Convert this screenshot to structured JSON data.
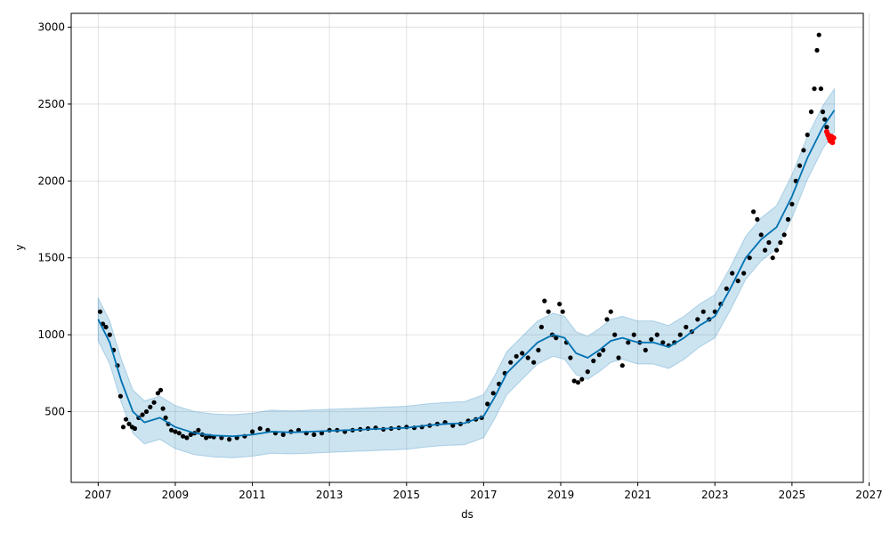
{
  "chart_data": {
    "type": "scatter",
    "title": "",
    "xlabel": "ds",
    "ylabel": "y",
    "xlim": [
      2006.3,
      2026.85
    ],
    "ylim": [
      40,
      3090
    ],
    "grid": true,
    "x_ticks": [
      2007,
      2009,
      2011,
      2013,
      2015,
      2017,
      2019,
      2021,
      2023,
      2025,
      2027
    ],
    "x_tick_labels": [
      "2007",
      "2009",
      "2011",
      "2013",
      "2015",
      "2017",
      "2019",
      "2021",
      "2023",
      "2025",
      "2027"
    ],
    "y_ticks": [
      500,
      1000,
      1500,
      2000,
      2500,
      3000
    ],
    "y_tick_labels": [
      "500",
      "1000",
      "1500",
      "2000",
      "2500",
      "3000"
    ],
    "colors": {
      "observed": "#000000",
      "forecast_line": "#0072b2",
      "uncertainty_band": "#0072b2",
      "highlighted_points": "#ff0000"
    },
    "series": [
      {
        "kind": "points",
        "color": "#000000",
        "x": [
          2007.05,
          2007.12,
          2007.2,
          2007.3,
          2007.4,
          2007.5,
          2007.58,
          2007.65,
          2007.72,
          2007.8,
          2007.88,
          2007.95,
          2008.05,
          2008.15,
          2008.25,
          2008.35,
          2008.45,
          2008.55,
          2008.62,
          2008.68,
          2008.75,
          2008.82,
          2008.9,
          2009.0,
          2009.1,
          2009.2,
          2009.3,
          2009.4,
          2009.5,
          2009.6,
          2009.7,
          2009.8,
          2009.9,
          2010.0,
          2010.2,
          2010.4,
          2010.6,
          2010.8,
          2011.0,
          2011.2,
          2011.4,
          2011.6,
          2011.8,
          2012.0,
          2012.2,
          2012.4,
          2012.6,
          2012.8,
          2013.0,
          2013.2,
          2013.4,
          2013.6,
          2013.8,
          2014.0,
          2014.2,
          2014.4,
          2014.6,
          2014.8,
          2015.0,
          2015.2,
          2015.4,
          2015.6,
          2015.8,
          2016.0,
          2016.2,
          2016.4,
          2016.6,
          2016.8,
          2016.95,
          2017.1,
          2017.25,
          2017.4,
          2017.55,
          2017.7,
          2017.85,
          2018.0,
          2018.15,
          2018.3,
          2018.42,
          2018.5,
          2018.58,
          2018.68,
          2018.78,
          2018.88,
          2018.97,
          2019.05,
          2019.15,
          2019.25,
          2019.35,
          2019.45,
          2019.55,
          2019.7,
          2019.85,
          2020.0,
          2020.1,
          2020.2,
          2020.3,
          2020.4,
          2020.5,
          2020.6,
          2020.75,
          2020.9,
          2021.05,
          2021.2,
          2021.35,
          2021.5,
          2021.65,
          2021.8,
          2021.95,
          2022.1,
          2022.25,
          2022.4,
          2022.55,
          2022.7,
          2022.85,
          2023.0,
          2023.15,
          2023.3,
          2023.45,
          2023.6,
          2023.75,
          2023.9,
          2024.0,
          2024.1,
          2024.2,
          2024.3,
          2024.4,
          2024.5,
          2024.6,
          2024.7,
          2024.8,
          2024.9,
          2025.0,
          2025.1,
          2025.2,
          2025.3,
          2025.4,
          2025.5,
          2025.58,
          2025.65,
          2025.7,
          2025.75,
          2025.8,
          2025.85,
          2025.9,
          2025.95
        ],
        "y": [
          1150,
          1070,
          1050,
          1000,
          900,
          800,
          600,
          400,
          450,
          420,
          400,
          390,
          460,
          480,
          500,
          530,
          560,
          620,
          640,
          520,
          460,
          420,
          380,
          370,
          360,
          340,
          330,
          350,
          360,
          380,
          350,
          330,
          340,
          335,
          330,
          320,
          330,
          340,
          370,
          390,
          380,
          360,
          350,
          370,
          380,
          360,
          350,
          360,
          380,
          380,
          370,
          380,
          385,
          390,
          395,
          385,
          390,
          395,
          400,
          395,
          400,
          410,
          420,
          430,
          410,
          420,
          440,
          450,
          460,
          550,
          620,
          680,
          750,
          820,
          860,
          880,
          850,
          820,
          900,
          1050,
          1220,
          1150,
          1000,
          980,
          1200,
          1150,
          950,
          850,
          700,
          690,
          710,
          760,
          830,
          870,
          900,
          1100,
          1150,
          1000,
          850,
          800,
          950,
          1000,
          950,
          900,
          970,
          1000,
          950,
          930,
          950,
          1000,
          1050,
          1020,
          1100,
          1150,
          1100,
          1150,
          1200,
          1300,
          1400,
          1350,
          1400,
          1500,
          1800,
          1750,
          1650,
          1550,
          1600,
          1500,
          1550,
          1600,
          1650,
          1750,
          1850,
          2000,
          2100,
          2200,
          2300,
          2450,
          2600,
          2850,
          2950,
          2600,
          2450,
          2400,
          2350,
          2300
        ]
      },
      {
        "kind": "forecast_line",
        "color": "#0072b2",
        "x": [
          2007.0,
          2007.3,
          2007.6,
          2007.9,
          2008.2,
          2008.6,
          2009.0,
          2009.5,
          2010.0,
          2010.5,
          2011.0,
          2011.5,
          2012.0,
          2012.5,
          2013.0,
          2013.5,
          2014.0,
          2014.5,
          2015.0,
          2015.5,
          2016.0,
          2016.5,
          2017.0,
          2017.3,
          2017.6,
          2018.0,
          2018.4,
          2018.8,
          2019.1,
          2019.4,
          2019.7,
          2020.0,
          2020.3,
          2020.6,
          2021.0,
          2021.4,
          2021.8,
          2022.2,
          2022.6,
          2023.0,
          2023.4,
          2023.8,
          2024.2,
          2024.6,
          2025.0,
          2025.4,
          2025.8,
          2026.1
        ],
        "y": [
          1100,
          950,
          700,
          500,
          430,
          460,
          400,
          360,
          345,
          340,
          350,
          370,
          365,
          370,
          375,
          380,
          385,
          390,
          395,
          410,
          420,
          425,
          470,
          600,
          750,
          850,
          950,
          1000,
          980,
          880,
          850,
          900,
          960,
          980,
          950,
          950,
          920,
          980,
          1060,
          1120,
          1300,
          1500,
          1620,
          1700,
          1900,
          2150,
          2350,
          2460
        ]
      },
      {
        "kind": "uncertainty_upper",
        "color": "#0072b2",
        "x": [
          2007.0,
          2007.3,
          2007.6,
          2007.9,
          2008.2,
          2008.6,
          2009.0,
          2009.5,
          2010.0,
          2010.5,
          2011.0,
          2011.5,
          2012.0,
          2012.5,
          2013.0,
          2013.5,
          2014.0,
          2014.5,
          2015.0,
          2015.5,
          2016.0,
          2016.5,
          2017.0,
          2017.3,
          2017.6,
          2018.0,
          2018.4,
          2018.8,
          2019.1,
          2019.4,
          2019.7,
          2020.0,
          2020.3,
          2020.6,
          2021.0,
          2021.4,
          2021.8,
          2022.2,
          2022.6,
          2023.0,
          2023.4,
          2023.8,
          2024.2,
          2024.6,
          2025.0,
          2025.4,
          2025.8,
          2026.1
        ],
        "y": [
          1240,
          1090,
          840,
          640,
          570,
          600,
          540,
          500,
          485,
          480,
          490,
          510,
          505,
          510,
          515,
          520,
          525,
          530,
          535,
          550,
          560,
          565,
          610,
          740,
          890,
          990,
          1090,
          1140,
          1120,
          1020,
          990,
          1040,
          1100,
          1120,
          1090,
          1090,
          1060,
          1120,
          1200,
          1260,
          1440,
          1640,
          1760,
          1840,
          2040,
          2290,
          2490,
          2600
        ]
      },
      {
        "kind": "uncertainty_lower",
        "color": "#0072b2",
        "x": [
          2007.0,
          2007.3,
          2007.6,
          2007.9,
          2008.2,
          2008.6,
          2009.0,
          2009.5,
          2010.0,
          2010.5,
          2011.0,
          2011.5,
          2012.0,
          2012.5,
          2013.0,
          2013.5,
          2014.0,
          2014.5,
          2015.0,
          2015.5,
          2016.0,
          2016.5,
          2017.0,
          2017.3,
          2017.6,
          2018.0,
          2018.4,
          2018.8,
          2019.1,
          2019.4,
          2019.7,
          2020.0,
          2020.3,
          2020.6,
          2021.0,
          2021.4,
          2021.8,
          2022.2,
          2022.6,
          2023.0,
          2023.4,
          2023.8,
          2024.2,
          2024.6,
          2025.0,
          2025.4,
          2025.8,
          2026.1
        ],
        "y": [
          960,
          810,
          560,
          360,
          290,
          320,
          260,
          220,
          205,
          200,
          210,
          230,
          225,
          230,
          235,
          240,
          245,
          250,
          255,
          270,
          280,
          285,
          330,
          460,
          610,
          710,
          810,
          860,
          840,
          740,
          710,
          760,
          820,
          840,
          810,
          810,
          780,
          840,
          920,
          980,
          1160,
          1360,
          1480,
          1560,
          1760,
          2010,
          2210,
          2320
        ]
      },
      {
        "kind": "highlighted_points",
        "color": "#ff0000",
        "x": [
          2025.9,
          2025.93,
          2025.96,
          2025.99,
          2026.02,
          2026.05,
          2026.08
        ],
        "y": [
          2320,
          2300,
          2280,
          2260,
          2290,
          2250,
          2280
        ]
      }
    ]
  }
}
